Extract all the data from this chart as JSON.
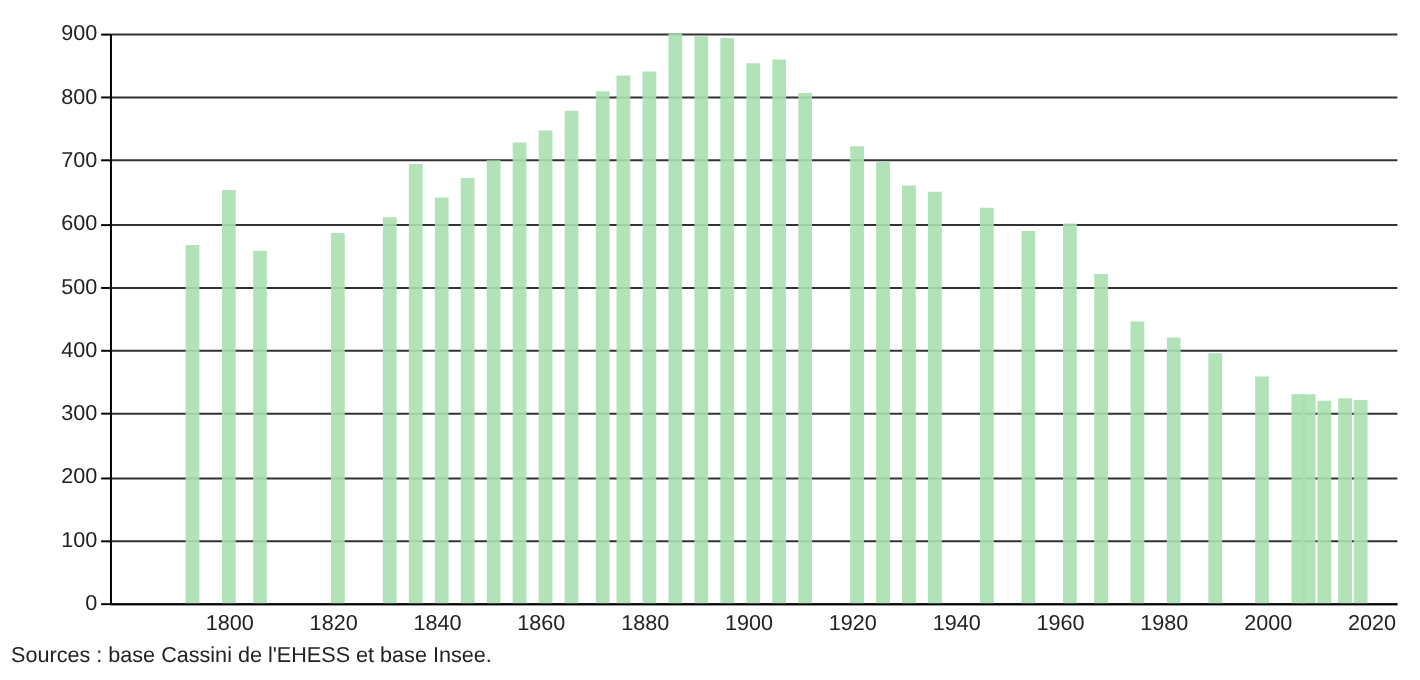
{
  "chart_data": {
    "type": "bar",
    "x": [
      1793,
      1800,
      1806,
      1821,
      1831,
      1836,
      1841,
      1846,
      1851,
      1856,
      1861,
      1866,
      1872,
      1876,
      1881,
      1886,
      1891,
      1896,
      1901,
      1906,
      1911,
      1921,
      1926,
      1931,
      1936,
      1946,
      1954,
      1962,
      1968,
      1975,
      1982,
      1990,
      1999,
      2006,
      2008,
      2011,
      2015,
      2018
    ],
    "values": [
      566,
      653,
      557,
      585,
      610,
      694,
      641,
      672,
      700,
      728,
      747,
      778,
      809,
      834,
      840,
      900,
      896,
      893,
      853,
      859,
      806,
      722,
      697,
      660,
      650,
      625,
      588,
      600,
      520,
      445,
      420,
      395,
      358,
      330,
      330,
      320,
      324,
      321
    ],
    "color": "#a8dfb0",
    "xlim": [
      1779,
      2023
    ],
    "xticks": [
      1800,
      1820,
      1840,
      1860,
      1880,
      1900,
      1920,
      1940,
      1960,
      1980,
      2000,
      2020
    ],
    "ylim": [
      0,
      900
    ],
    "yticks": [
      0,
      100,
      200,
      300,
      400,
      500,
      600,
      700,
      800,
      900
    ],
    "grid": "y",
    "annotations": [
      "Sources : base Cassini de l'EHESS et base Insee."
    ]
  }
}
